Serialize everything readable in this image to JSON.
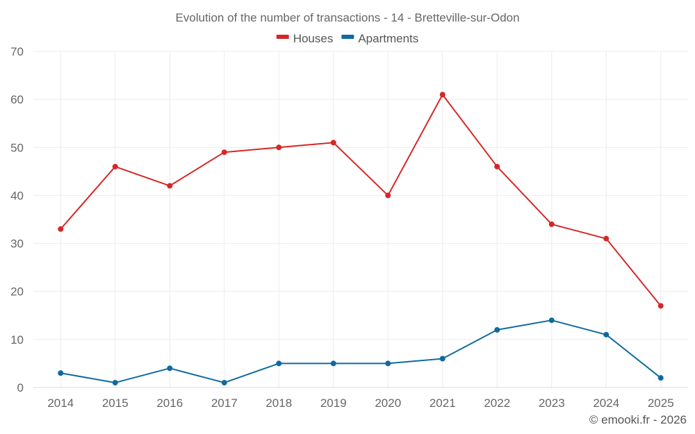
{
  "chart_data": {
    "type": "line",
    "title": "Evolution of the number of transactions - 14 - Bretteville-sur-Odon",
    "xlabel": "",
    "ylabel": "",
    "categories": [
      "2014",
      "2015",
      "2016",
      "2017",
      "2018",
      "2019",
      "2020",
      "2021",
      "2022",
      "2023",
      "2024",
      "2025"
    ],
    "ylim": [
      0,
      70
    ],
    "yticks": [
      0,
      10,
      20,
      30,
      40,
      50,
      60,
      70
    ],
    "grid": true,
    "legend_position": "top-center",
    "series": [
      {
        "name": "Houses",
        "color": "#d62728",
        "values": [
          33,
          46,
          42,
          49,
          50,
          51,
          40,
          61,
          46,
          34,
          31,
          17
        ]
      },
      {
        "name": "Apartments",
        "color": "#0f6aa0",
        "values": [
          3,
          1,
          4,
          1,
          5,
          5,
          5,
          6,
          12,
          14,
          11,
          2
        ]
      }
    ]
  },
  "credit": "© emooki.fr - 2026"
}
